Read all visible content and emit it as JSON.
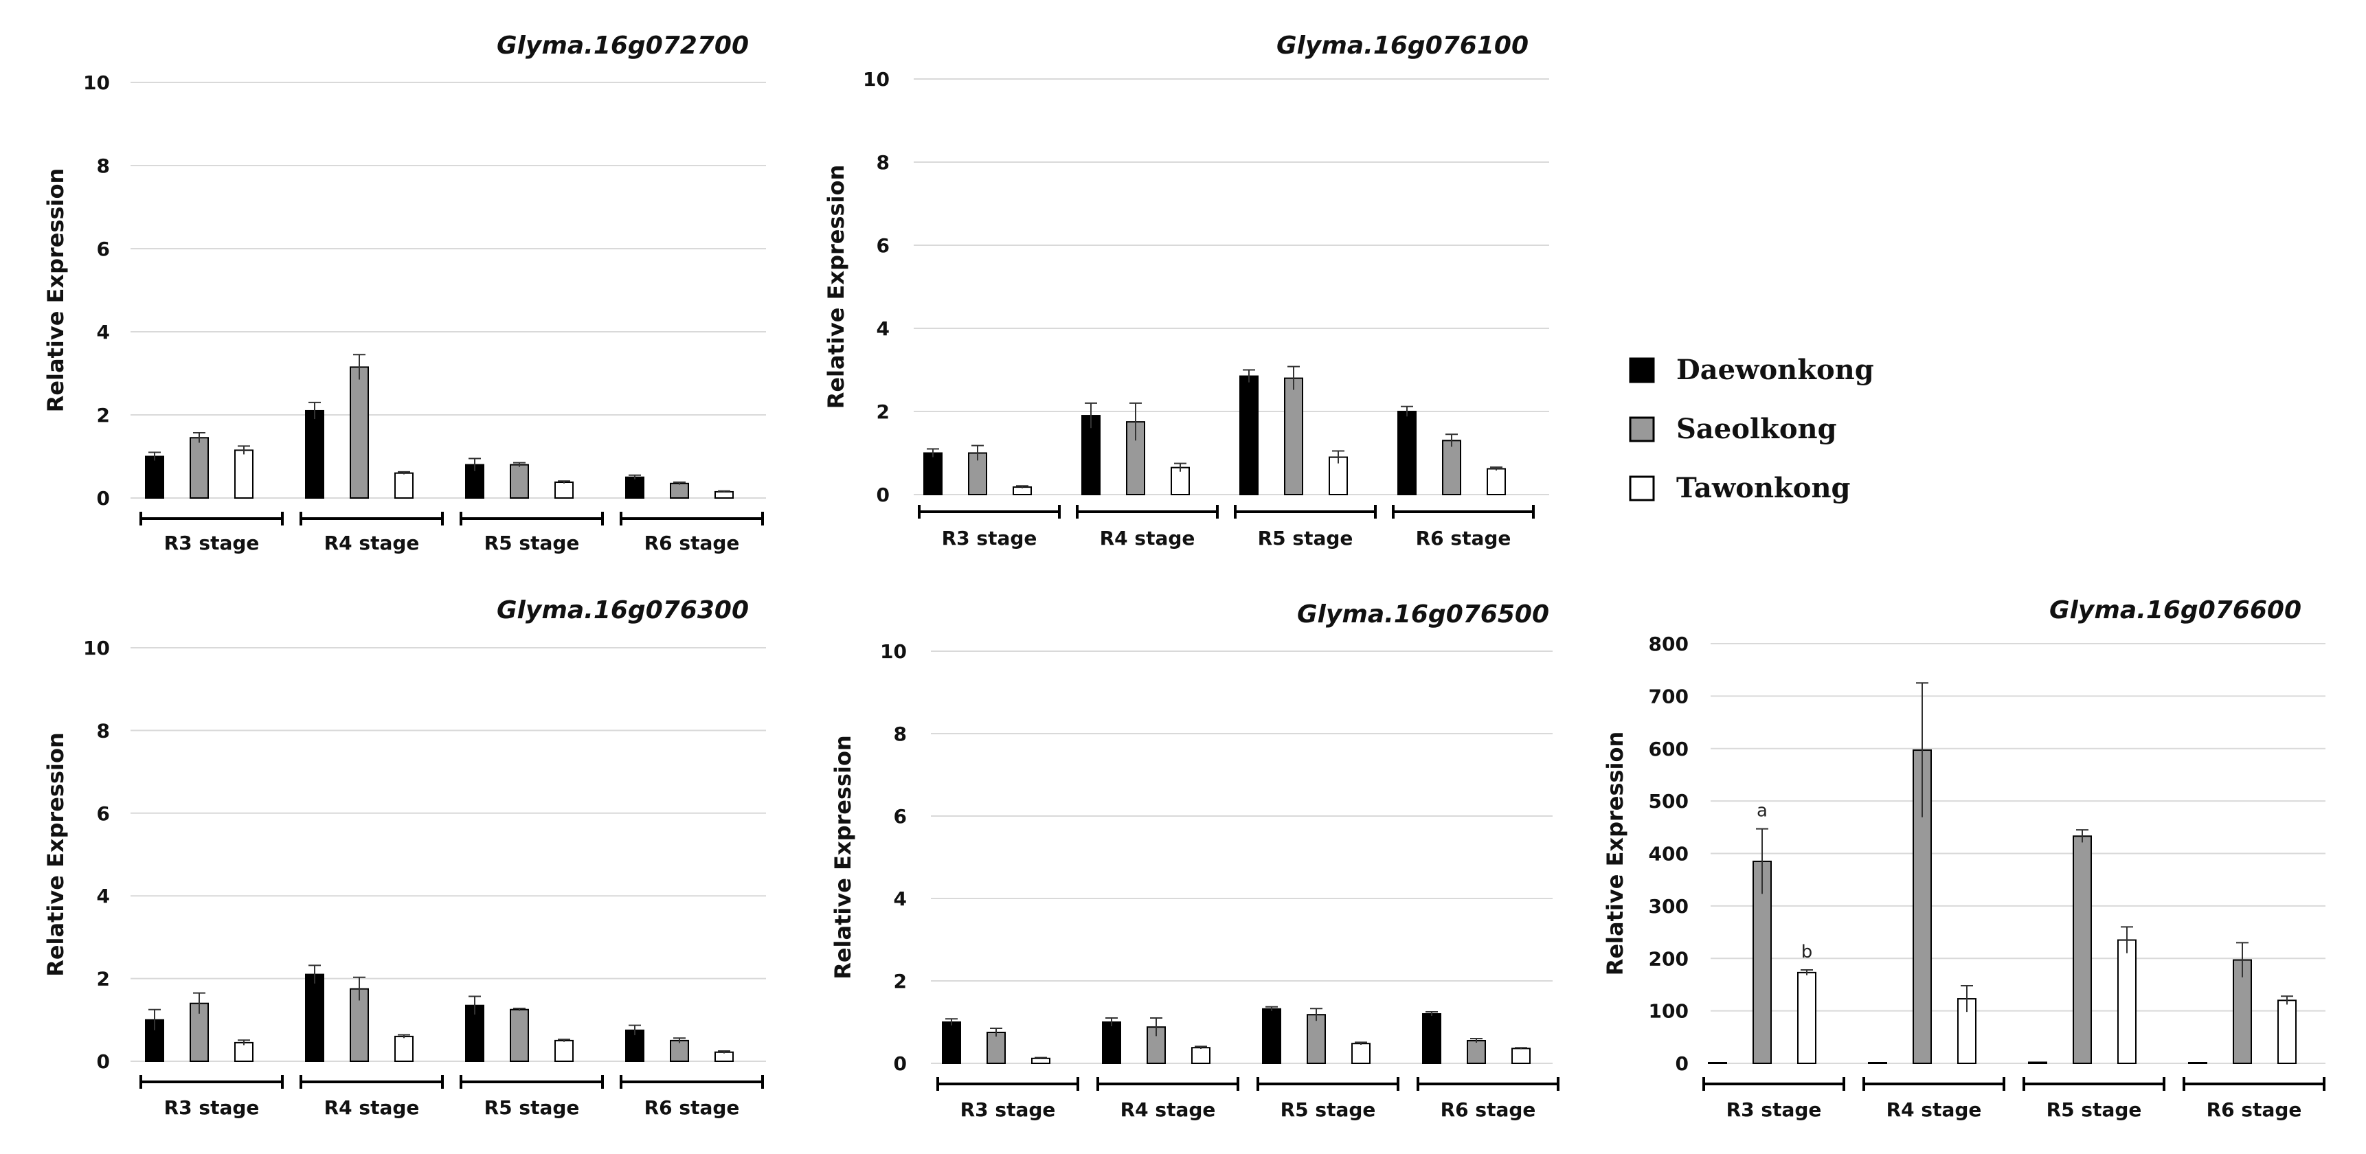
{
  "colors": {
    "Daewonkong": "#000000",
    "Saeolkong": "#999999",
    "Tawonkong": "#ffffff",
    "grid": "#d9d9d9",
    "stroke": "#000000"
  },
  "legend": [
    {
      "name": "Daewonkong",
      "swatch": "Daewonkong"
    },
    {
      "name": "Saeolkong",
      "swatch": "Saeolkong"
    },
    {
      "name": "Tawonkong",
      "swatch": "Tawonkong"
    }
  ],
  "chart_data": [
    {
      "type": "bar",
      "title": "Glyma.16g072700",
      "ylabel": "Relative Expression",
      "ylim": [
        0,
        10
      ],
      "yticks": [
        "0",
        "2",
        "4",
        "6",
        "8",
        "10"
      ],
      "categories": [
        "R3 stage",
        "R4 stage",
        "R5 stage",
        "R6 stage"
      ],
      "series": [
        {
          "name": "Daewonkong",
          "values": [
            1.0,
            2.1,
            0.8,
            0.5
          ],
          "errors": [
            0.1,
            0.2,
            0.15,
            0.05
          ]
        },
        {
          "name": "Saeolkong",
          "values": [
            1.45,
            3.15,
            0.8,
            0.35
          ],
          "errors": [
            0.12,
            0.3,
            0.05,
            0.03
          ]
        },
        {
          "name": "Tawonkong",
          "values": [
            1.15,
            0.6,
            0.38,
            0.15
          ],
          "errors": [
            0.1,
            0.03,
            0.03,
            0.02
          ]
        }
      ],
      "annotations": []
    },
    {
      "type": "bar",
      "title": "Glyma.16g076100",
      "ylabel": "Relative Expression",
      "ylim": [
        0,
        10
      ],
      "yticks": [
        "0",
        "2",
        "4",
        "6",
        "8",
        "10"
      ],
      "categories": [
        "R3 stage",
        "R4 stage",
        "R5 stage",
        "R6 stage"
      ],
      "series": [
        {
          "name": "Daewonkong",
          "values": [
            1.0,
            1.9,
            2.85,
            2.0
          ],
          "errors": [
            0.1,
            0.3,
            0.15,
            0.12
          ]
        },
        {
          "name": "Saeolkong",
          "values": [
            1.0,
            1.75,
            2.8,
            1.3
          ],
          "errors": [
            0.18,
            0.45,
            0.28,
            0.15
          ]
        },
        {
          "name": "Tawonkong",
          "values": [
            0.18,
            0.65,
            0.9,
            0.62
          ],
          "errors": [
            0.03,
            0.1,
            0.15,
            0.04
          ]
        }
      ],
      "annotations": []
    },
    {
      "type": "bar",
      "title": "Glyma.16g076300",
      "ylabel": "Relative Expression",
      "ylim": [
        0,
        10
      ],
      "yticks": [
        "0",
        "2",
        "4",
        "6",
        "8",
        "10"
      ],
      "categories": [
        "R3 stage",
        "R4 stage",
        "R5 stage",
        "R6 stage"
      ],
      "series": [
        {
          "name": "Daewonkong",
          "values": [
            1.0,
            2.1,
            1.35,
            0.75
          ],
          "errors": [
            0.25,
            0.22,
            0.22,
            0.12
          ]
        },
        {
          "name": "Saeolkong",
          "values": [
            1.4,
            1.75,
            1.25,
            0.5
          ],
          "errors": [
            0.25,
            0.28,
            0.03,
            0.06
          ]
        },
        {
          "name": "Tawonkong",
          "values": [
            0.45,
            0.6,
            0.5,
            0.22
          ],
          "errors": [
            0.06,
            0.04,
            0.03,
            0.03
          ]
        }
      ],
      "annotations": []
    },
    {
      "type": "bar",
      "title": "Glyma.16g076500",
      "ylabel": "Relative Expression",
      "ylim": [
        0,
        10
      ],
      "yticks": [
        "0",
        "2",
        "4",
        "6",
        "8",
        "10"
      ],
      "categories": [
        "R3 stage",
        "R4 stage",
        "R5 stage",
        "R6 stage"
      ],
      "series": [
        {
          "name": "Daewonkong",
          "values": [
            1.0,
            1.0,
            1.32,
            1.2
          ],
          "errors": [
            0.08,
            0.1,
            0.05,
            0.05
          ]
        },
        {
          "name": "Saeolkong",
          "values": [
            0.75,
            0.88,
            1.18,
            0.55
          ],
          "errors": [
            0.1,
            0.22,
            0.15,
            0.05
          ]
        },
        {
          "name": "Tawonkong",
          "values": [
            0.12,
            0.38,
            0.48,
            0.36
          ],
          "errors": [
            0.02,
            0.03,
            0.03,
            0.02
          ]
        }
      ],
      "annotations": []
    },
    {
      "type": "bar",
      "title": "Glyma.16g076600",
      "ylabel": "Relative Expression",
      "ylim": [
        0,
        800
      ],
      "yticks": [
        "0",
        "100",
        "200",
        "300",
        "400",
        "500",
        "600",
        "700",
        "800"
      ],
      "categories": [
        "R3 stage",
        "R4 stage",
        "R5 stage",
        "R6 stage"
      ],
      "series": [
        {
          "name": "Daewonkong",
          "values": [
            1,
            1,
            2,
            1
          ],
          "errors": [
            0,
            0,
            0,
            0
          ]
        },
        {
          "name": "Saeolkong",
          "values": [
            385,
            597,
            433,
            197
          ],
          "errors": [
            62,
            128,
            12,
            33
          ]
        },
        {
          "name": "Tawonkong",
          "values": [
            173,
            123,
            235,
            120
          ],
          "errors": [
            5,
            25,
            25,
            8
          ]
        }
      ],
      "annotations": [
        {
          "text": "a",
          "category": 0,
          "series": 1
        },
        {
          "text": "b",
          "category": 0,
          "series": 2
        }
      ]
    }
  ]
}
